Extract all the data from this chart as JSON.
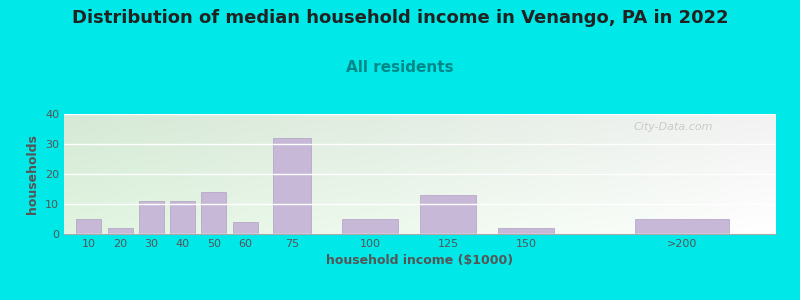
{
  "title": "Distribution of median household income in Venango, PA in 2022",
  "subtitle": "All residents",
  "xlabel": "household income ($1000)",
  "ylabel": "households",
  "background_outer": "#00e8e8",
  "bar_color": "#c8b8d8",
  "bar_edge_color": "#b0a0c0",
  "categories": [
    "10",
    "20",
    "30",
    "40",
    "50",
    "60",
    "75",
    "100",
    "125",
    "150",
    ">200"
  ],
  "x_positions": [
    10,
    20,
    30,
    40,
    50,
    60,
    75,
    100,
    125,
    150,
    200
  ],
  "bar_widths": [
    8,
    8,
    8,
    8,
    8,
    8,
    12,
    18,
    18,
    18,
    30
  ],
  "values": [
    5,
    2,
    11,
    11,
    14,
    4,
    32,
    5,
    13,
    2,
    5
  ],
  "ylim": [
    0,
    40
  ],
  "yticks": [
    0,
    10,
    20,
    30,
    40
  ],
  "xlim": [
    2,
    230
  ],
  "title_fontsize": 13,
  "subtitle_fontsize": 11,
  "axis_label_fontsize": 9,
  "tick_fontsize": 8,
  "watermark_text": "City-Data.com",
  "watermark_color": "#c0c0c0",
  "title_color": "#222222",
  "subtitle_color": "#008888",
  "label_color": "#555555"
}
